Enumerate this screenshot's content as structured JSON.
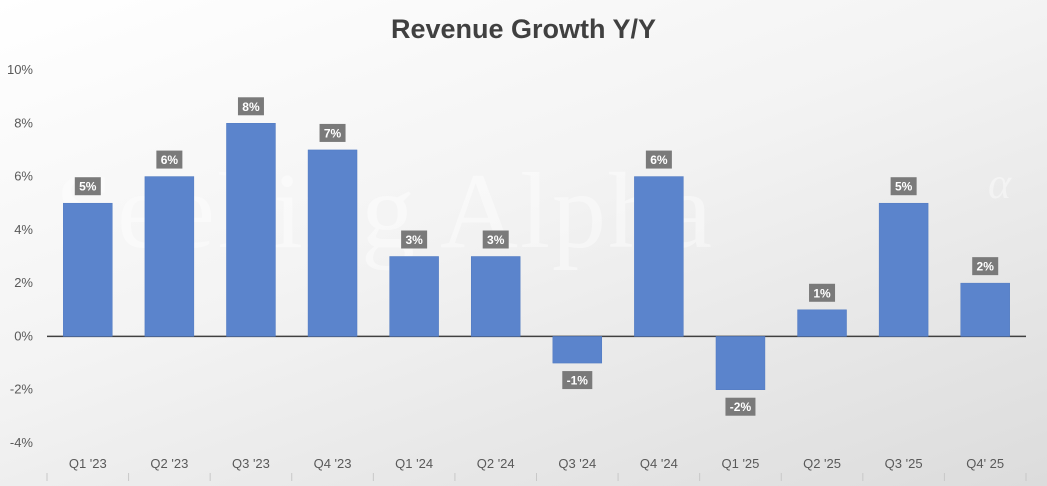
{
  "chart_data": {
    "type": "bar",
    "title": "Revenue Growth Y/Y",
    "xlabel": "",
    "ylabel": "",
    "categories": [
      "Q1 '23",
      "Q2 '23",
      "Q3 '23",
      "Q4 '23",
      "Q1 '24",
      "Q2 '24",
      "Q3 '24",
      "Q4 '24",
      "Q1 '25",
      "Q2 '25",
      "Q3 '25",
      "Q4' 25"
    ],
    "values": [
      5,
      6,
      8,
      7,
      3,
      3,
      -1,
      6,
      -2,
      1,
      5,
      2
    ],
    "data_labels": [
      "5%",
      "6%",
      "8%",
      "7%",
      "3%",
      "3%",
      "-1%",
      "6%",
      "-2%",
      "1%",
      "5%",
      "2%"
    ],
    "ylim": [
      -4,
      10
    ],
    "yticks": [
      -4,
      -2,
      0,
      2,
      4,
      6,
      8,
      10
    ],
    "ytick_labels": [
      "-4%",
      "-2%",
      "0%",
      "2%",
      "4%",
      "6%",
      "8%",
      "10%"
    ],
    "grid": false,
    "legend": "none",
    "bar_color": "#5b84cc",
    "label_bg_color": "#7a7a7a",
    "watermark": "Seeking Alpha"
  }
}
